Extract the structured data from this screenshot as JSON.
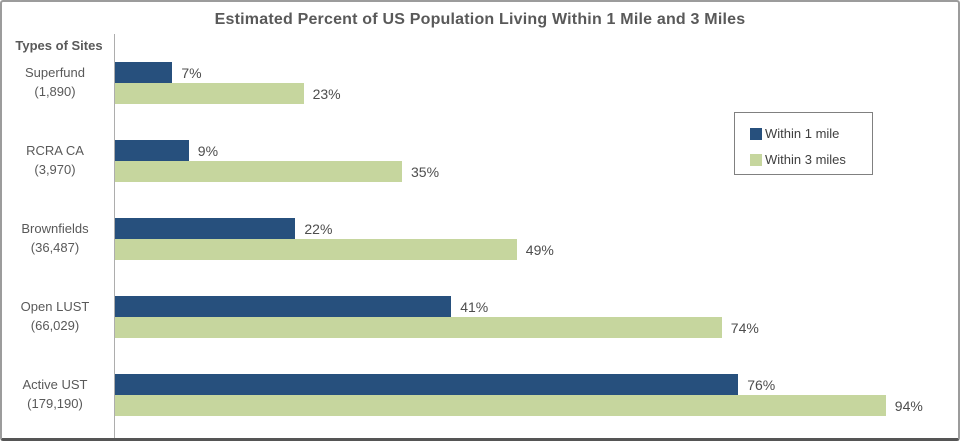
{
  "chart_data": {
    "type": "bar",
    "orientation": "horizontal",
    "title": "Estimated Percent of US Population Living Within 1 Mile and 3 Miles",
    "axis_label": "Types of Sites",
    "categories": [
      "Superfund",
      "RCRA CA",
      "Brownfields",
      "Open LUST",
      "Active UST"
    ],
    "category_counts": [
      "(1,890)",
      "(3,970)",
      "(36,487)",
      "(66,029)",
      "(179,190)"
    ],
    "series": [
      {
        "name": "Within 1 mile",
        "color": "#27507D",
        "values": [
          7,
          9,
          22,
          41,
          76
        ]
      },
      {
        "name": "Within 3 miles",
        "color": "#C6D69E",
        "values": [
          23,
          35,
          49,
          74,
          94
        ]
      }
    ],
    "value_suffix": "%",
    "xlim": [
      0,
      100
    ],
    "grid": false,
    "legend_position": "upper-right",
    "colors": {
      "title_text": "#595959",
      "category_text": "#595959",
      "value_text": "#4d4d4d",
      "legend_text": "#3f3f3f",
      "axis_line": "#adadad",
      "frame_border": "#9c9c9c",
      "frame_bottom_border": "#555555"
    }
  }
}
